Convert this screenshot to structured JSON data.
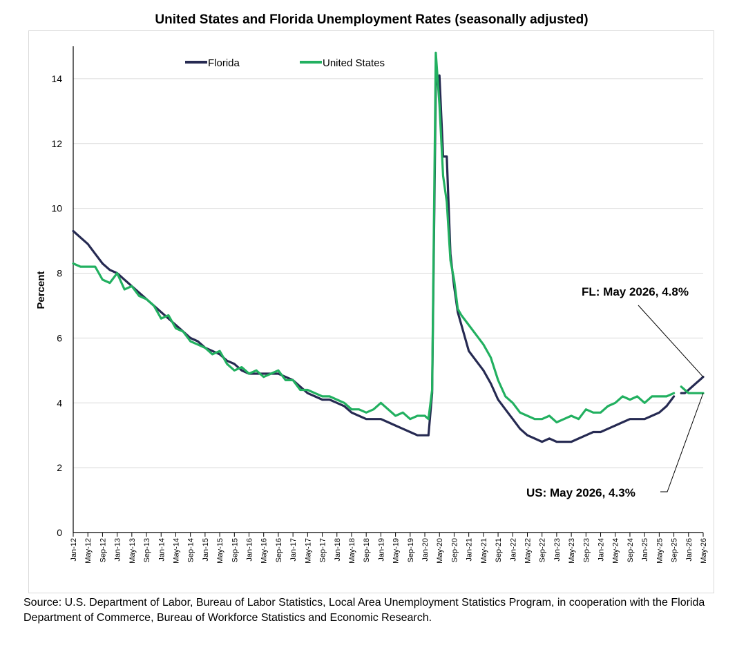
{
  "title": "United States and Florida Unemployment Rates (seasonally adjusted)",
  "source": "Source:  U.S. Department of Labor, Bureau of Labor Statistics, Local Area Unemployment Statistics Program, in cooperation with the Florida Department of Commerce, Bureau of Workforce Statistics and Economic Research.",
  "colors": {
    "florida": "#262a52",
    "united_states": "#22b060",
    "grid": "#d9d9d9",
    "axis": "#000000"
  },
  "annotations": {
    "fl": "FL: May 2026, 4.8%",
    "us": "US: May 2026, 4.3%"
  },
  "chart_data": {
    "type": "line",
    "title": "United States and Florida Unemployment Rates (seasonally adjusted)",
    "xlabel": "",
    "ylabel": "Percent",
    "ylim": [
      0,
      15
    ],
    "yticks": [
      0,
      2,
      4,
      6,
      8,
      10,
      12,
      14
    ],
    "grid": "horizontal",
    "legend_position": "top",
    "x_start": "Jan-12",
    "x_end": "May-26",
    "x_tick_labels": [
      "Jan-12",
      "May-12",
      "Sep-12",
      "Jan-13",
      "May-13",
      "Sep-13",
      "Jan-14",
      "May-14",
      "Sep-14",
      "Jan-15",
      "May-15",
      "Sep-15",
      "Jan-16",
      "May-16",
      "Sep-16",
      "Jan-17",
      "May-17",
      "Sep-17",
      "Jan-18",
      "May-18",
      "Sep-18",
      "Jan-19",
      "May-19",
      "Sep-19",
      "Jan-20",
      "May-20",
      "Sep-20",
      "Jan-21",
      "May-21",
      "Sep-21",
      "Jan-22",
      "May-22",
      "Sep-22",
      "Jan-23",
      "May-23",
      "Sep-23",
      "Jan-24",
      "May-24",
      "Sep-24",
      "Jan-25",
      "May-25",
      "Sep-25",
      "Jan-26",
      "May-26"
    ],
    "series": [
      {
        "name": "Florida",
        "color": "#262a52",
        "points": [
          [
            "Jan-12",
            9.3
          ],
          [
            "Mar-12",
            9.1
          ],
          [
            "May-12",
            8.9
          ],
          [
            "Jul-12",
            8.6
          ],
          [
            "Sep-12",
            8.3
          ],
          [
            "Nov-12",
            8.1
          ],
          [
            "Jan-13",
            8.0
          ],
          [
            "Mar-13",
            7.8
          ],
          [
            "May-13",
            7.6
          ],
          [
            "Jul-13",
            7.4
          ],
          [
            "Sep-13",
            7.2
          ],
          [
            "Nov-13",
            7.0
          ],
          [
            "Jan-14",
            6.8
          ],
          [
            "Mar-14",
            6.6
          ],
          [
            "May-14",
            6.4
          ],
          [
            "Jul-14",
            6.2
          ],
          [
            "Sep-14",
            6.0
          ],
          [
            "Nov-14",
            5.9
          ],
          [
            "Jan-15",
            5.7
          ],
          [
            "Mar-15",
            5.6
          ],
          [
            "May-15",
            5.5
          ],
          [
            "Jul-15",
            5.3
          ],
          [
            "Sep-15",
            5.2
          ],
          [
            "Nov-15",
            5.0
          ],
          [
            "Jan-16",
            4.9
          ],
          [
            "Mar-16",
            4.9
          ],
          [
            "May-16",
            4.9
          ],
          [
            "Jul-16",
            4.9
          ],
          [
            "Sep-16",
            4.9
          ],
          [
            "Nov-16",
            4.8
          ],
          [
            "Jan-17",
            4.7
          ],
          [
            "Mar-17",
            4.5
          ],
          [
            "May-17",
            4.3
          ],
          [
            "Jul-17",
            4.2
          ],
          [
            "Sep-17",
            4.1
          ],
          [
            "Nov-17",
            4.1
          ],
          [
            "Jan-18",
            4.0
          ],
          [
            "Mar-18",
            3.9
          ],
          [
            "May-18",
            3.7
          ],
          [
            "Jul-18",
            3.6
          ],
          [
            "Sep-18",
            3.5
          ],
          [
            "Nov-18",
            3.5
          ],
          [
            "Jan-19",
            3.5
          ],
          [
            "Mar-19",
            3.4
          ],
          [
            "May-19",
            3.3
          ],
          [
            "Jul-19",
            3.2
          ],
          [
            "Sep-19",
            3.1
          ],
          [
            "Nov-19",
            3.0
          ],
          [
            "Jan-20",
            3.0
          ],
          [
            "Feb-20",
            3.0
          ],
          [
            "Mar-20",
            4.3
          ],
          [
            "Apr-20",
            13.8
          ],
          [
            "May-20",
            14.1
          ],
          [
            "Jun-20",
            11.6
          ],
          [
            "Jul-20",
            11.6
          ],
          [
            "Aug-20",
            8.6
          ],
          [
            "Sep-20",
            7.6
          ],
          [
            "Oct-20",
            6.8
          ],
          [
            "Nov-20",
            6.4
          ],
          [
            "Jan-21",
            5.6
          ],
          [
            "Mar-21",
            5.3
          ],
          [
            "May-21",
            5.0
          ],
          [
            "Jul-21",
            4.6
          ],
          [
            "Sep-21",
            4.1
          ],
          [
            "Nov-21",
            3.8
          ],
          [
            "Jan-22",
            3.5
          ],
          [
            "Mar-22",
            3.2
          ],
          [
            "May-22",
            3.0
          ],
          [
            "Jul-22",
            2.9
          ],
          [
            "Sep-22",
            2.8
          ],
          [
            "Nov-22",
            2.9
          ],
          [
            "Jan-23",
            2.8
          ],
          [
            "Mar-23",
            2.8
          ],
          [
            "May-23",
            2.8
          ],
          [
            "Jul-23",
            2.9
          ],
          [
            "Sep-23",
            3.0
          ],
          [
            "Nov-23",
            3.1
          ],
          [
            "Jan-24",
            3.1
          ],
          [
            "Mar-24",
            3.2
          ],
          [
            "May-24",
            3.3
          ],
          [
            "Jul-24",
            3.4
          ],
          [
            "Sep-24",
            3.5
          ],
          [
            "Nov-24",
            3.5
          ],
          [
            "Jan-25",
            3.5
          ],
          [
            "Mar-25",
            3.6
          ],
          [
            "May-25",
            3.7
          ],
          [
            "Jul-25",
            3.9
          ],
          [
            "Sep-25",
            4.2
          ],
          null,
          [
            "Nov-25",
            4.3
          ],
          [
            "Dec-25",
            4.3
          ],
          [
            "Jan-26",
            4.4
          ],
          [
            "Mar-26",
            4.6
          ],
          [
            "Apr-26",
            4.7
          ],
          [
            "May-26",
            4.8
          ]
        ]
      },
      {
        "name": "United States",
        "color": "#22b060",
        "points": [
          [
            "Jan-12",
            8.3
          ],
          [
            "Mar-12",
            8.2
          ],
          [
            "May-12",
            8.2
          ],
          [
            "Jul-12",
            8.2
          ],
          [
            "Sep-12",
            7.8
          ],
          [
            "Nov-12",
            7.7
          ],
          [
            "Jan-13",
            8.0
          ],
          [
            "Mar-13",
            7.5
          ],
          [
            "May-13",
            7.6
          ],
          [
            "Jul-13",
            7.3
          ],
          [
            "Sep-13",
            7.2
          ],
          [
            "Nov-13",
            7.0
          ],
          [
            "Jan-14",
            6.6
          ],
          [
            "Mar-14",
            6.7
          ],
          [
            "May-14",
            6.3
          ],
          [
            "Jul-14",
            6.2
          ],
          [
            "Sep-14",
            5.9
          ],
          [
            "Nov-14",
            5.8
          ],
          [
            "Jan-15",
            5.7
          ],
          [
            "Mar-15",
            5.5
          ],
          [
            "May-15",
            5.6
          ],
          [
            "Jul-15",
            5.2
          ],
          [
            "Sep-15",
            5.0
          ],
          [
            "Nov-15",
            5.1
          ],
          [
            "Jan-16",
            4.9
          ],
          [
            "Mar-16",
            5.0
          ],
          [
            "May-16",
            4.8
          ],
          [
            "Jul-16",
            4.9
          ],
          [
            "Sep-16",
            5.0
          ],
          [
            "Nov-16",
            4.7
          ],
          [
            "Jan-17",
            4.7
          ],
          [
            "Mar-17",
            4.4
          ],
          [
            "May-17",
            4.4
          ],
          [
            "Jul-17",
            4.3
          ],
          [
            "Sep-17",
            4.2
          ],
          [
            "Nov-17",
            4.2
          ],
          [
            "Jan-18",
            4.1
          ],
          [
            "Mar-18",
            4.0
          ],
          [
            "May-18",
            3.8
          ],
          [
            "Jul-18",
            3.8
          ],
          [
            "Sep-18",
            3.7
          ],
          [
            "Nov-18",
            3.8
          ],
          [
            "Jan-19",
            4.0
          ],
          [
            "Mar-19",
            3.8
          ],
          [
            "May-19",
            3.6
          ],
          [
            "Jul-19",
            3.7
          ],
          [
            "Sep-19",
            3.5
          ],
          [
            "Nov-19",
            3.6
          ],
          [
            "Jan-20",
            3.6
          ],
          [
            "Feb-20",
            3.5
          ],
          [
            "Mar-20",
            4.4
          ],
          [
            "Apr-20",
            14.8
          ],
          [
            "May-20",
            13.2
          ],
          [
            "Jun-20",
            11.0
          ],
          [
            "Jul-20",
            10.2
          ],
          [
            "Aug-20",
            8.4
          ],
          [
            "Sep-20",
            7.8
          ],
          [
            "Oct-20",
            6.9
          ],
          [
            "Nov-20",
            6.7
          ],
          [
            "Jan-21",
            6.4
          ],
          [
            "Mar-21",
            6.1
          ],
          [
            "May-21",
            5.8
          ],
          [
            "Jul-21",
            5.4
          ],
          [
            "Sep-21",
            4.7
          ],
          [
            "Nov-21",
            4.2
          ],
          [
            "Jan-22",
            4.0
          ],
          [
            "Mar-22",
            3.7
          ],
          [
            "May-22",
            3.6
          ],
          [
            "Jul-22",
            3.5
          ],
          [
            "Sep-22",
            3.5
          ],
          [
            "Nov-22",
            3.6
          ],
          [
            "Jan-23",
            3.4
          ],
          [
            "Mar-23",
            3.5
          ],
          [
            "May-23",
            3.6
          ],
          [
            "Jul-23",
            3.5
          ],
          [
            "Sep-23",
            3.8
          ],
          [
            "Nov-23",
            3.7
          ],
          [
            "Jan-24",
            3.7
          ],
          [
            "Mar-24",
            3.9
          ],
          [
            "May-24",
            4.0
          ],
          [
            "Jul-24",
            4.2
          ],
          [
            "Sep-24",
            4.1
          ],
          [
            "Nov-24",
            4.2
          ],
          [
            "Jan-25",
            4.0
          ],
          [
            "Mar-25",
            4.2
          ],
          [
            "May-25",
            4.2
          ],
          [
            "Jul-25",
            4.2
          ],
          [
            "Sep-25",
            4.3
          ],
          null,
          [
            "Nov-25",
            4.5
          ],
          [
            "Dec-25",
            4.4
          ],
          [
            "Jan-26",
            4.3
          ],
          [
            "Mar-26",
            4.3
          ],
          [
            "Apr-26",
            4.3
          ],
          [
            "May-26",
            4.3
          ]
        ]
      }
    ]
  }
}
